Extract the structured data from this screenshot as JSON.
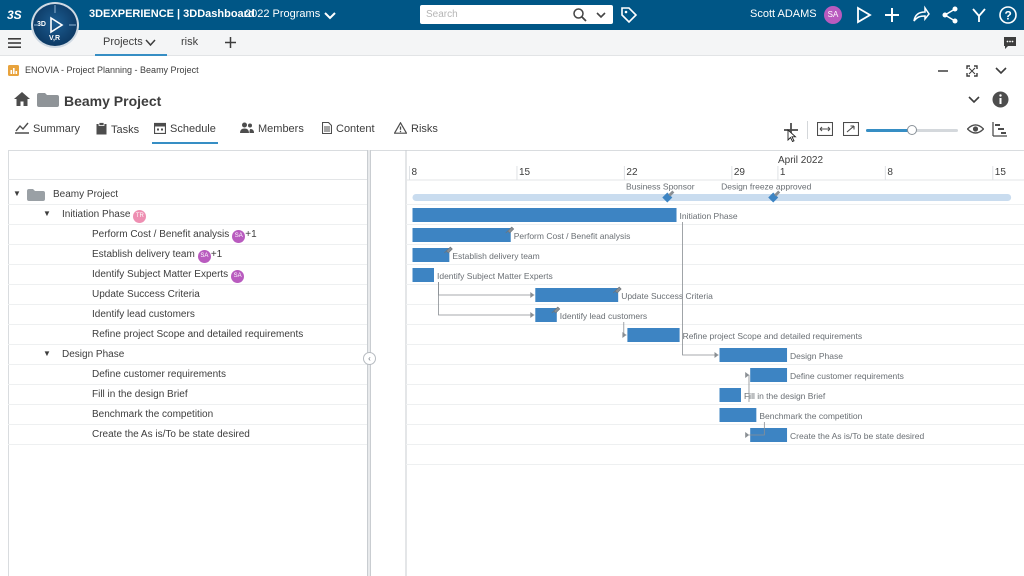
{
  "topbar": {
    "compass_quadrants": [
      "3D",
      "V,R"
    ],
    "brand": "3DEXPERIENCE | 3DDashboard",
    "dashboard": "2022 Programs",
    "search_placeholder": "Search",
    "user": "Scott ADAMS",
    "user_initials": "SA",
    "bg_color": "#005686"
  },
  "dashboard_tabs": [
    {
      "label": "Projects",
      "active": true
    },
    {
      "label": "risk",
      "active": false
    }
  ],
  "widget": {
    "breadcrumb": "ENOVIA - Project Planning - Beamy Project"
  },
  "project": {
    "title": "Beamy Project"
  },
  "view_tabs": [
    {
      "label": "Summary",
      "icon": "chart-icon"
    },
    {
      "label": "Tasks",
      "icon": "clipboard-icon"
    },
    {
      "label": "Schedule",
      "icon": "calendar-icon",
      "active": true
    },
    {
      "label": "Members",
      "icon": "people-icon"
    },
    {
      "label": "Content",
      "icon": "document-icon"
    },
    {
      "label": "Risks",
      "icon": "warning-icon"
    }
  ],
  "zoom": {
    "level": 0.5
  },
  "tasks": [
    {
      "name": "Beamy Project",
      "level": 0,
      "expandable": true
    },
    {
      "name": "Initiation Phase",
      "level": 1,
      "expandable": true,
      "assignees": [
        "TR"
      ]
    },
    {
      "name": "Perform Cost / Benefit analysis",
      "level": 2,
      "assignees": [
        "SA"
      ],
      "extra": "+1"
    },
    {
      "name": "Establish delivery team",
      "level": 2,
      "assignees": [
        "SA"
      ],
      "extra": "+1"
    },
    {
      "name": "Identify Subject Matter Experts",
      "level": 2,
      "assignees": [
        "SA"
      ]
    },
    {
      "name": "Update Success Criteria",
      "level": 2
    },
    {
      "name": "Identify lead customers",
      "level": 2
    },
    {
      "name": "Refine project Scope and detailed requirements",
      "level": 2
    },
    {
      "name": "Design Phase",
      "level": 1,
      "expandable": true
    },
    {
      "name": "Define customer requirements",
      "level": 2
    },
    {
      "name": "Fill in the design Brief",
      "level": 2
    },
    {
      "name": "Benchmark the competition",
      "level": 2
    },
    {
      "name": "Create the As is/To be state desired",
      "level": 2
    }
  ],
  "timeline": {
    "month_label": "April 2022",
    "start_day": "2022-03-07",
    "end_day": "2022-04-16",
    "ticks": [
      {
        "label": "8",
        "date": "2022-03-08"
      },
      {
        "label": "15",
        "date": "2022-03-15"
      },
      {
        "label": "22",
        "date": "2022-03-22"
      },
      {
        "label": "29",
        "date": "2022-03-29"
      },
      {
        "label": "1",
        "date": "2022-04-01"
      },
      {
        "label": "8",
        "date": "2022-04-08"
      },
      {
        "label": "15",
        "date": "2022-04-15"
      }
    ]
  },
  "milestones": [
    {
      "label": "Business Sponsor",
      "date": "2022-03-24.6"
    },
    {
      "label": "Design freeze approved",
      "date": "2022-03-31.5"
    }
  ],
  "bars": [
    {
      "row": 0,
      "start": 8,
      "end": 47,
      "summary": true
    },
    {
      "row": 1,
      "start": 8,
      "end": 25.2,
      "label": "Initiation Phase"
    },
    {
      "row": 2,
      "start": 8,
      "end": 14.4,
      "label": "Perform Cost / Benefit analysis",
      "pin": true
    },
    {
      "row": 3,
      "start": 8,
      "end": 10.4,
      "label": "Establish delivery team",
      "pin": true
    },
    {
      "row": 4,
      "start": 8,
      "end": 9.4,
      "label": "Identify Subject Matter Experts"
    },
    {
      "row": 5,
      "start": 16,
      "end": 21.4,
      "label": "Update Success Criteria",
      "pin": true
    },
    {
      "row": 6,
      "start": 16,
      "end": 17.4,
      "label": "Identify lead customers",
      "pin": true
    },
    {
      "row": 7,
      "start": 22,
      "end": 25.4,
      "label": "Refine project Scope and detailed requirements"
    },
    {
      "row": 8,
      "start": 28,
      "end": 32.4,
      "label": "Design Phase"
    },
    {
      "row": 9,
      "start": 30,
      "end": 32.4,
      "label": "Define customer requirements"
    },
    {
      "row": 10,
      "start": 28,
      "end": 29.4,
      "label": "Fill in the design Brief"
    },
    {
      "row": 11,
      "start": 28,
      "end": 30.4,
      "label": "Benchmark the competition"
    },
    {
      "row": 12,
      "start": 30,
      "end": 32.4,
      "label": "Create the As is/To be state desired"
    }
  ],
  "links": [
    [
      4,
      5
    ],
    [
      4,
      6
    ],
    [
      6,
      7
    ],
    [
      1,
      8
    ],
    [
      10,
      9
    ],
    [
      11,
      12
    ]
  ],
  "colors": {
    "bar": "#3d84c3",
    "summary": "#c9dcef",
    "link": "#8a8f94",
    "grid": "#eef0f1",
    "accent": "#368ec4"
  }
}
